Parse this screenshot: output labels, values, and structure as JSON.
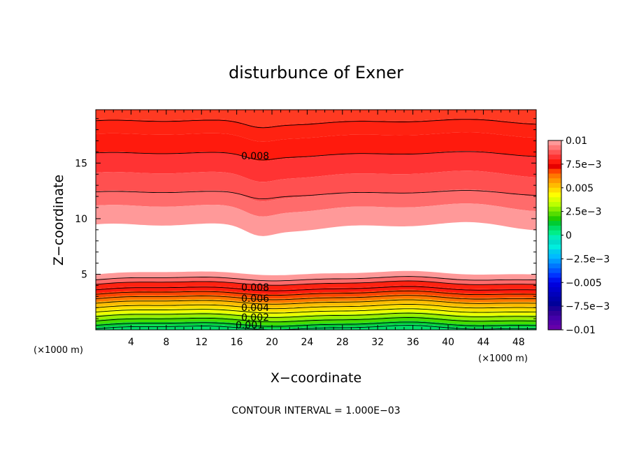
{
  "chart_data": {
    "type": "heatmap",
    "subtype": "filled-contour",
    "title": "disturbunce of Exner",
    "xlabel": "X−coordinate",
    "ylabel": "Z−coordinate",
    "x_unit": "(×1000 m)",
    "y_unit": "(×1000 m)",
    "xlim": [
      0,
      50
    ],
    "ylim": [
      0,
      19.8
    ],
    "x_ticks": [
      "4",
      "8",
      "12",
      "16",
      "20",
      "24",
      "28",
      "32",
      "36",
      "40",
      "44",
      "48"
    ],
    "y_ticks": [
      "5",
      "10",
      "15"
    ],
    "x_tick_values": [
      4,
      8,
      12,
      16,
      20,
      24,
      28,
      32,
      36,
      40,
      44,
      48
    ],
    "y_tick_values": [
      5,
      10,
      15
    ],
    "contour_labels": [
      "0.008",
      "0.008",
      "0.006",
      "0.004",
      "0.002",
      "0.001"
    ],
    "footer": "CONTOUR INTERVAL =  1.000E−03",
    "colorbar": {
      "ticks": [
        "0.01",
        "7.5e−3",
        "0.005",
        "2.5e−3",
        "0",
        "−2.5e−3",
        "−0.005",
        "−7.5e−3",
        "−0.01"
      ],
      "tick_values": [
        0.01,
        0.0075,
        0.005,
        0.0025,
        0,
        -0.0025,
        -0.005,
        -0.0075,
        -0.01
      ],
      "levels": [
        {
          "from": 0.0095,
          "to": 0.01,
          "color": "#ff9999"
        },
        {
          "from": 0.009,
          "to": 0.0095,
          "color": "#ff7777"
        },
        {
          "from": 0.0085,
          "to": 0.009,
          "color": "#ff5555"
        },
        {
          "from": 0.008,
          "to": 0.0085,
          "color": "#ff3333"
        },
        {
          "from": 0.0075,
          "to": 0.008,
          "color": "#ff1a0d"
        },
        {
          "from": 0.007,
          "to": 0.0075,
          "color": "#e60000"
        },
        {
          "from": 0.0065,
          "to": 0.007,
          "color": "#ff4400"
        },
        {
          "from": 0.006,
          "to": 0.0065,
          "color": "#ff7700"
        },
        {
          "from": 0.0055,
          "to": 0.006,
          "color": "#ff9900"
        },
        {
          "from": 0.005,
          "to": 0.0055,
          "color": "#ffbb00"
        },
        {
          "from": 0.0045,
          "to": 0.005,
          "color": "#ffdd00"
        },
        {
          "from": 0.004,
          "to": 0.0045,
          "color": "#ffff00"
        },
        {
          "from": 0.0035,
          "to": 0.004,
          "color": "#ddff00"
        },
        {
          "from": 0.003,
          "to": 0.0035,
          "color": "#bbff00"
        },
        {
          "from": 0.0025,
          "to": 0.003,
          "color": "#88ee00"
        },
        {
          "from": 0.002,
          "to": 0.0025,
          "color": "#55dd00"
        },
        {
          "from": 0.0015,
          "to": 0.002,
          "color": "#22cc00"
        },
        {
          "from": 0.001,
          "to": 0.0015,
          "color": "#00cc33"
        },
        {
          "from": 0.0005,
          "to": 0.001,
          "color": "#00dd66"
        },
        {
          "from": 0.0,
          "to": 0.0005,
          "color": "#00ee88"
        },
        {
          "from": -0.0005,
          "to": 0.0,
          "color": "#00eebb"
        },
        {
          "from": -0.001,
          "to": -0.0005,
          "color": "#00ddcc"
        },
        {
          "from": -0.0015,
          "to": -0.001,
          "color": "#00eedd"
        },
        {
          "from": -0.002,
          "to": -0.0015,
          "color": "#00ccee"
        },
        {
          "from": -0.0025,
          "to": -0.002,
          "color": "#00bbff"
        },
        {
          "from": -0.003,
          "to": -0.0025,
          "color": "#0099ff"
        },
        {
          "from": -0.0035,
          "to": -0.003,
          "color": "#0077ff"
        },
        {
          "from": -0.004,
          "to": -0.0035,
          "color": "#0055ff"
        },
        {
          "from": -0.0045,
          "to": -0.004,
          "color": "#0033ff"
        },
        {
          "from": -0.005,
          "to": -0.0045,
          "color": "#0011ee"
        },
        {
          "from": -0.0055,
          "to": -0.005,
          "color": "#0000dd"
        },
        {
          "from": -0.006,
          "to": -0.0055,
          "color": "#0000cc"
        },
        {
          "from": -0.0065,
          "to": -0.006,
          "color": "#0000bb"
        },
        {
          "from": -0.007,
          "to": -0.0065,
          "color": "#0000aa"
        },
        {
          "from": -0.0075,
          "to": -0.007,
          "color": "#000099"
        },
        {
          "from": -0.008,
          "to": -0.0075,
          "color": "#1a0099"
        },
        {
          "from": -0.0085,
          "to": -0.008,
          "color": "#330099"
        },
        {
          "from": -0.009,
          "to": -0.0085,
          "color": "#4400aa"
        },
        {
          "from": -0.0095,
          "to": -0.009,
          "color": "#5500aa"
        },
        {
          "from": -0.01,
          "to": -0.0095,
          "color": "#6600aa"
        }
      ]
    },
    "bands_upper": [
      {
        "z_base": 18.8,
        "z_top": 19.8,
        "color": "#ff3a22"
      },
      {
        "z_base": 17.5,
        "z_top": 18.8,
        "color": "#ff2211"
      },
      {
        "z_base": 15.8,
        "z_top": 17.5,
        "color": "#ff1a0d"
      },
      {
        "z_base": 14.0,
        "z_top": 15.8,
        "color": "#ff3333"
      },
      {
        "z_base": 12.3,
        "z_top": 14.0,
        "color": "#ff5050"
      },
      {
        "z_base": 11.0,
        "z_top": 12.3,
        "color": "#ff6b6b"
      },
      {
        "z_base": 9.3,
        "z_top": 11.0,
        "color": "#ff9999"
      }
    ],
    "bands_lower": [
      {
        "z_base": 4.6,
        "z_top": 5.1,
        "color": "#ff9999"
      },
      {
        "z_base": 4.2,
        "z_top": 4.6,
        "color": "#ff6b6b"
      },
      {
        "z_base": 3.8,
        "z_top": 4.2,
        "color": "#ff2211"
      },
      {
        "z_base": 3.4,
        "z_top": 3.8,
        "color": "#ff1a0d"
      },
      {
        "z_base": 3.0,
        "z_top": 3.4,
        "color": "#ff4400"
      },
      {
        "z_base": 2.6,
        "z_top": 3.0,
        "color": "#ff7700"
      },
      {
        "z_base": 2.2,
        "z_top": 2.6,
        "color": "#ffbb00"
      },
      {
        "z_base": 1.8,
        "z_top": 2.2,
        "color": "#ffdd00"
      },
      {
        "z_base": 1.4,
        "z_top": 1.8,
        "color": "#eeff00"
      },
      {
        "z_base": 1.0,
        "z_top": 1.4,
        "color": "#99ee00"
      },
      {
        "z_base": 0.6,
        "z_top": 1.0,
        "color": "#44dd00"
      },
      {
        "z_base": 0.3,
        "z_top": 0.6,
        "color": "#00cc33"
      },
      {
        "z_base": 0.0,
        "z_top": 0.3,
        "color": "#00dd66"
      }
    ],
    "contour_lines_z": [
      18.7,
      15.8,
      12.3,
      4.6,
      4.2,
      3.7,
      3.3,
      2.9,
      2.5,
      2.1,
      1.7,
      1.3,
      0.9,
      0.5,
      0.2
    ]
  }
}
